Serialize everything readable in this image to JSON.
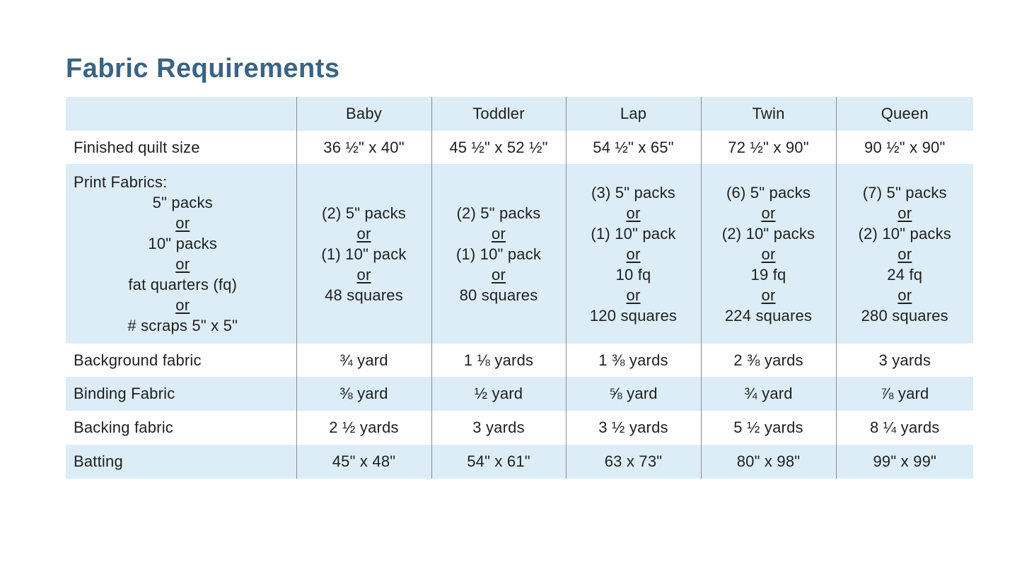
{
  "title": "Fabric Requirements",
  "colors": {
    "title_text": "#3A6384",
    "row_highlight": "#DCEDF8",
    "grid_line": "#8C8C8C",
    "body_text": "#1F1F1F"
  },
  "table": {
    "columns": [
      "",
      "Baby",
      "Toddler",
      "Lap",
      "Twin",
      "Queen"
    ],
    "rows": [
      {
        "label": "Finished quilt size",
        "cells": [
          "36 ½\" x 40\"",
          "45 ½\" x 52 ½\"",
          "54 ½\" x 65\"",
          "72 ½\" x 90\"",
          "90 ½\" x 90\""
        ]
      },
      {
        "label_lines": [
          "Print Fabrics:",
          "5\" packs",
          "or",
          "10\" packs",
          "or",
          "fat quarters (fq)",
          "or",
          "# scraps 5\" x 5\""
        ],
        "cells_lines": [
          [
            "(2) 5\" packs",
            "or",
            "(1) 10\" pack",
            "or",
            "48 squares"
          ],
          [
            "(2) 5\" packs",
            "or",
            "(1) 10\" pack",
            "or",
            "80 squares"
          ],
          [
            "(3) 5\" packs",
            "or",
            "(1) 10\" pack",
            "or",
            "10 fq",
            "or",
            "120 squares"
          ],
          [
            "(6) 5\" packs",
            "or",
            "(2) 10\" packs",
            "or",
            "19 fq",
            "or",
            "224 squares"
          ],
          [
            "(7) 5\" packs",
            "or",
            "(2) 10\" packs",
            "or",
            "24 fq",
            "or",
            "280 squares"
          ]
        ]
      },
      {
        "label": "Background fabric",
        "cells": [
          "¾ yard",
          "1 ⅛ yards",
          "1 ⅜ yards",
          "2 ⅜ yards",
          "3 yards"
        ]
      },
      {
        "label": "Binding Fabric",
        "cells": [
          "⅜ yard",
          "½ yard",
          "⅝ yard",
          "¾ yard",
          "⅞ yard"
        ]
      },
      {
        "label": "Backing fabric",
        "cells": [
          "2 ½ yards",
          "3 yards",
          "3 ½ yards",
          "5 ½ yards",
          "8 ¼ yards"
        ]
      },
      {
        "label": "Batting",
        "cells": [
          "45\" x 48\"",
          "54\" x 61\"",
          "63 x 73\"",
          "80\" x 98\"",
          "99\" x 99\""
        ]
      }
    ]
  }
}
